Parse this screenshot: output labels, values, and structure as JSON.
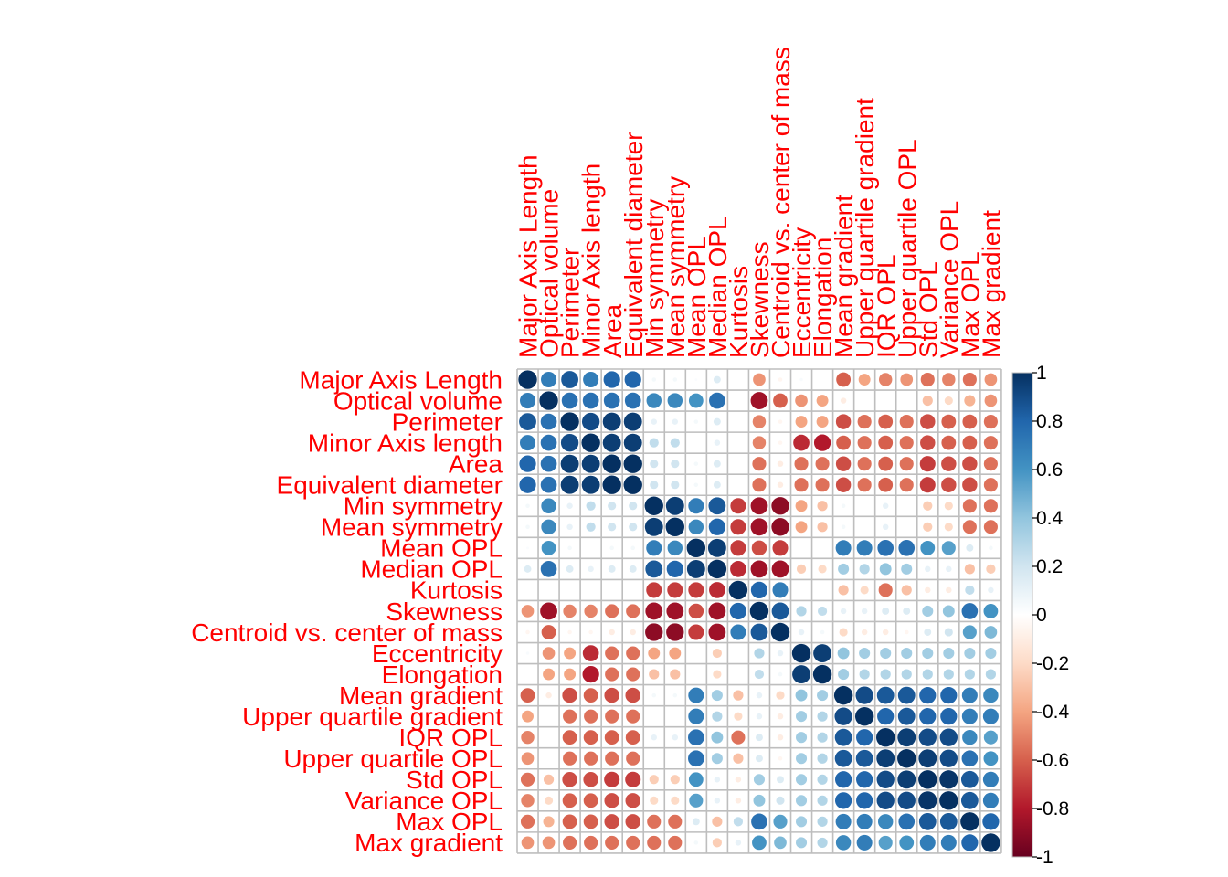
{
  "chart_data": {
    "type": "heatmap",
    "style": "correlation-circles",
    "variables": [
      "Major Axis Length",
      "Optical volume",
      "Perimeter",
      "Minor Axis length",
      "Area",
      "Equivalent diameter",
      "Min symmetry",
      "Mean symmetry",
      "Mean OPL",
      "Median OPL",
      "Kurtosis",
      "Skewness",
      "Centroid vs. center of mass",
      "Eccentricity",
      "Elongation",
      "Mean gradient",
      "Upper quartile gradient",
      "IQR OPL",
      "Upper quartile OPL",
      "Std OPL",
      "Variance OPL",
      "Max OPL",
      "Max gradient"
    ],
    "matrix": [
      [
        1.0,
        0.7,
        0.85,
        0.7,
        0.8,
        0.8,
        0.05,
        0.05,
        0.02,
        0.15,
        0.0,
        -0.45,
        -0.05,
        0.03,
        0.0,
        -0.6,
        -0.4,
        -0.5,
        -0.45,
        -0.55,
        -0.5,
        -0.55,
        -0.45
      ],
      [
        0.7,
        1.0,
        0.75,
        0.75,
        0.75,
        0.75,
        0.65,
        0.65,
        0.6,
        0.75,
        0.0,
        -0.85,
        -0.6,
        -0.45,
        -0.4,
        -0.1,
        0.0,
        0.0,
        0.0,
        -0.3,
        -0.2,
        -0.35,
        -0.45
      ],
      [
        0.85,
        0.75,
        1.0,
        0.9,
        0.95,
        0.95,
        0.1,
        0.1,
        0.05,
        0.15,
        0.0,
        -0.5,
        -0.05,
        -0.4,
        -0.4,
        -0.65,
        -0.55,
        -0.6,
        -0.55,
        -0.65,
        -0.6,
        -0.6,
        -0.55
      ],
      [
        0.7,
        0.75,
        0.9,
        1.0,
        0.95,
        0.95,
        0.25,
        0.25,
        0.0,
        0.1,
        0.0,
        -0.5,
        -0.05,
        -0.75,
        -0.8,
        -0.6,
        -0.55,
        -0.6,
        -0.55,
        -0.65,
        -0.6,
        -0.6,
        -0.55
      ],
      [
        0.8,
        0.75,
        0.95,
        0.95,
        1.0,
        1.0,
        0.2,
        0.2,
        0.05,
        0.15,
        0.0,
        -0.55,
        -0.1,
        -0.55,
        -0.55,
        -0.65,
        -0.55,
        -0.6,
        -0.55,
        -0.7,
        -0.65,
        -0.65,
        -0.55
      ],
      [
        0.8,
        0.75,
        0.95,
        0.95,
        1.0,
        1.0,
        0.2,
        0.2,
        0.05,
        0.15,
        0.0,
        -0.55,
        -0.1,
        -0.55,
        -0.55,
        -0.65,
        -0.55,
        -0.6,
        -0.55,
        -0.7,
        -0.65,
        -0.65,
        -0.55
      ],
      [
        0.05,
        0.65,
        0.1,
        0.25,
        0.2,
        0.2,
        1.0,
        0.95,
        0.7,
        0.85,
        -0.7,
        -0.85,
        -0.9,
        -0.4,
        -0.3,
        0.05,
        0.0,
        0.1,
        0.0,
        -0.25,
        -0.2,
        -0.55,
        -0.55
      ],
      [
        0.05,
        0.65,
        0.1,
        0.25,
        0.2,
        0.2,
        0.95,
        1.0,
        0.65,
        0.8,
        -0.7,
        -0.85,
        -0.9,
        -0.4,
        -0.3,
        0.05,
        0.0,
        0.1,
        0.0,
        -0.25,
        -0.2,
        -0.55,
        -0.55
      ],
      [
        0.02,
        0.6,
        0.05,
        0.0,
        0.05,
        0.05,
        0.7,
        0.65,
        1.0,
        0.95,
        -0.7,
        -0.65,
        -0.7,
        0.0,
        0.0,
        0.7,
        0.7,
        0.75,
        0.75,
        0.6,
        0.55,
        0.15,
        0.05
      ],
      [
        0.15,
        0.75,
        0.15,
        0.1,
        0.15,
        0.15,
        0.85,
        0.8,
        0.95,
        1.0,
        -0.75,
        -0.85,
        -0.85,
        -0.25,
        -0.2,
        0.35,
        0.3,
        0.4,
        0.35,
        0.1,
        0.1,
        -0.3,
        -0.25
      ],
      [
        0.0,
        0.0,
        0.0,
        0.0,
        0.0,
        0.0,
        -0.7,
        -0.7,
        -0.7,
        -0.75,
        1.0,
        0.8,
        0.7,
        0.0,
        0.0,
        -0.3,
        -0.2,
        -0.55,
        -0.3,
        -0.1,
        -0.1,
        0.25,
        0.1
      ],
      [
        -0.45,
        -0.85,
        -0.5,
        -0.5,
        -0.55,
        -0.55,
        -0.85,
        -0.85,
        -0.65,
        -0.85,
        0.8,
        1.0,
        0.85,
        0.3,
        0.25,
        0.1,
        0.1,
        0.15,
        0.15,
        0.35,
        0.4,
        0.75,
        0.6
      ],
      [
        -0.05,
        -0.6,
        -0.05,
        -0.05,
        -0.1,
        -0.1,
        -0.9,
        -0.9,
        -0.7,
        -0.85,
        0.7,
        0.85,
        1.0,
        0.1,
        0.05,
        -0.2,
        -0.1,
        -0.1,
        -0.05,
        0.15,
        0.2,
        0.55,
        0.45
      ],
      [
        0.03,
        -0.45,
        -0.4,
        -0.75,
        -0.55,
        -0.55,
        -0.4,
        -0.4,
        0.0,
        -0.25,
        0.0,
        0.3,
        0.1,
        1.0,
        0.95,
        0.4,
        0.35,
        0.35,
        0.35,
        0.35,
        0.35,
        0.35,
        0.35
      ],
      [
        0.0,
        -0.4,
        -0.4,
        -0.8,
        -0.55,
        -0.55,
        -0.3,
        -0.3,
        0.0,
        -0.2,
        0.0,
        0.25,
        0.05,
        0.95,
        1.0,
        0.35,
        0.3,
        0.3,
        0.3,
        0.3,
        0.3,
        0.3,
        0.3
      ],
      [
        -0.6,
        -0.1,
        -0.65,
        -0.6,
        -0.65,
        -0.65,
        0.05,
        0.05,
        0.7,
        0.35,
        -0.3,
        0.1,
        -0.2,
        0.4,
        0.35,
        1.0,
        0.9,
        0.85,
        0.85,
        0.8,
        0.8,
        0.7,
        0.65
      ],
      [
        -0.4,
        0.0,
        -0.55,
        -0.55,
        -0.55,
        -0.55,
        0.0,
        0.0,
        0.7,
        0.3,
        -0.2,
        0.1,
        -0.1,
        0.35,
        0.3,
        0.9,
        1.0,
        0.8,
        0.85,
        0.8,
        0.8,
        0.7,
        0.7
      ],
      [
        -0.5,
        0.0,
        -0.6,
        -0.6,
        -0.6,
        -0.6,
        0.1,
        0.1,
        0.75,
        0.4,
        -0.55,
        0.15,
        -0.1,
        0.35,
        0.3,
        0.85,
        0.8,
        1.0,
        0.95,
        0.9,
        0.9,
        0.65,
        0.55
      ],
      [
        -0.45,
        0.0,
        -0.55,
        -0.55,
        -0.55,
        -0.55,
        0.0,
        0.0,
        0.75,
        0.35,
        -0.3,
        0.15,
        -0.05,
        0.35,
        0.3,
        0.85,
        0.85,
        0.95,
        1.0,
        0.95,
        0.9,
        0.75,
        0.6
      ],
      [
        -0.55,
        -0.3,
        -0.65,
        -0.65,
        -0.7,
        -0.7,
        -0.25,
        -0.25,
        0.6,
        0.1,
        -0.1,
        0.35,
        0.15,
        0.35,
        0.3,
        0.8,
        0.8,
        0.9,
        0.95,
        1.0,
        0.98,
        0.85,
        0.7
      ],
      [
        -0.5,
        -0.2,
        -0.6,
        -0.6,
        -0.65,
        -0.65,
        -0.2,
        -0.2,
        0.55,
        0.1,
        -0.1,
        0.4,
        0.2,
        0.35,
        0.3,
        0.8,
        0.8,
        0.9,
        0.9,
        0.98,
        1.0,
        0.85,
        0.7
      ],
      [
        -0.55,
        -0.35,
        -0.6,
        -0.6,
        -0.65,
        -0.65,
        -0.55,
        -0.55,
        0.15,
        -0.3,
        0.25,
        0.75,
        0.55,
        0.35,
        0.3,
        0.7,
        0.7,
        0.65,
        0.75,
        0.85,
        0.85,
        1.0,
        0.8
      ],
      [
        -0.45,
        -0.45,
        -0.55,
        -0.55,
        -0.55,
        -0.55,
        -0.55,
        -0.55,
        0.05,
        -0.25,
        0.1,
        0.6,
        0.45,
        0.35,
        0.3,
        0.65,
        0.7,
        0.55,
        0.6,
        0.7,
        0.7,
        0.8,
        1.0
      ]
    ],
    "scale": {
      "min": -1,
      "max": 1,
      "ticks": [
        "1",
        "0.8",
        "0.6",
        "0.4",
        "0.2",
        "0",
        "-0.2",
        "-0.4",
        "-0.6",
        "-0.8",
        "-1"
      ]
    },
    "label_color": "#FF0000",
    "grid_color": "#BEBEBE",
    "palette": [
      "#67001F",
      "#B2182B",
      "#D6604D",
      "#F4A582",
      "#FDDBC7",
      "#FFFFFF",
      "#D1E5F0",
      "#92C5DE",
      "#4393C3",
      "#2166AC",
      "#053061"
    ],
    "legend": "right"
  }
}
